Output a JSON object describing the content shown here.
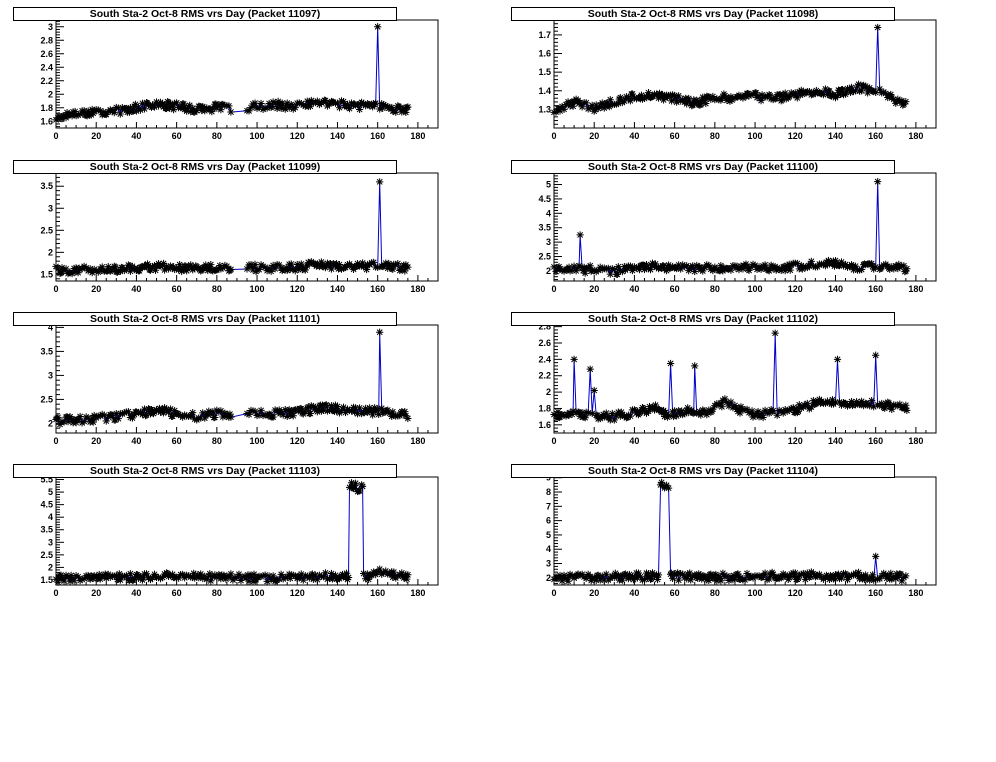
{
  "chart_data": [
    {
      "type": "line",
      "title": "South Sta-2 Oct-8 RMS vrs Day (Packet 11097)",
      "xlabel": "",
      "ylabel": "",
      "xlim": [
        0,
        190
      ],
      "ylim": [
        1.5,
        3.1
      ],
      "xticks": [
        0,
        20,
        40,
        60,
        80,
        100,
        120,
        140,
        160,
        180
      ],
      "yticks": [
        1.6,
        1.8,
        2,
        2.2,
        2.4,
        2.6,
        2.8,
        3
      ],
      "ytick_labels": [
        "1.6",
        "1.8",
        "2",
        "2.2",
        "2.4",
        "2.6",
        "2.8",
        "3"
      ],
      "series": [
        {
          "x": [
            0,
            10,
            20,
            30,
            40,
            50,
            60,
            70,
            80,
            90,
            100,
            110,
            120,
            130,
            140,
            150,
            159,
            160,
            161,
            170,
            175
          ],
          "values": [
            1.65,
            1.72,
            1.74,
            1.75,
            1.8,
            1.86,
            1.82,
            1.78,
            1.8,
            1.78,
            1.82,
            1.84,
            1.82,
            1.9,
            1.86,
            1.82,
            1.84,
            3.0,
            1.82,
            1.78,
            1.76
          ]
        }
      ]
    },
    {
      "type": "line",
      "title": "South Sta-2 Oct-8 RMS vrs Day (Packet 11098)",
      "xlabel": "",
      "ylabel": "",
      "xlim": [
        0,
        190
      ],
      "ylim": [
        1.2,
        1.78
      ],
      "xticks": [
        0,
        20,
        40,
        60,
        80,
        100,
        120,
        140,
        160,
        180
      ],
      "yticks": [
        1.3,
        1.4,
        1.5,
        1.6,
        1.7
      ],
      "ytick_labels": [
        "1.3",
        "1.4",
        "1.5",
        "1.6",
        "1.7"
      ],
      "series": [
        {
          "x": [
            0,
            10,
            20,
            30,
            40,
            50,
            60,
            70,
            80,
            90,
            100,
            110,
            120,
            130,
            140,
            150,
            160,
            161,
            162,
            170,
            175
          ],
          "values": [
            1.3,
            1.34,
            1.3,
            1.34,
            1.37,
            1.37,
            1.36,
            1.33,
            1.37,
            1.36,
            1.37,
            1.36,
            1.38,
            1.4,
            1.38,
            1.42,
            1.4,
            1.74,
            1.4,
            1.35,
            1.33
          ]
        }
      ]
    },
    {
      "type": "line",
      "title": "South Sta-2 Oct-8 RMS vrs Day (Packet 11099)",
      "xlabel": "",
      "ylabel": "",
      "xlim": [
        0,
        190
      ],
      "ylim": [
        1.35,
        3.8
      ],
      "xticks": [
        0,
        20,
        40,
        60,
        80,
        100,
        120,
        140,
        160,
        180
      ],
      "yticks": [
        1.5,
        2,
        2.5,
        3,
        3.5
      ],
      "ytick_labels": [
        "1.5",
        "2",
        "2.5",
        "3",
        "3.5"
      ],
      "series": [
        {
          "x": [
            0,
            10,
            20,
            30,
            40,
            50,
            60,
            70,
            80,
            90,
            100,
            110,
            120,
            130,
            140,
            150,
            160,
            161,
            162,
            170,
            175
          ],
          "values": [
            1.6,
            1.6,
            1.6,
            1.62,
            1.65,
            1.68,
            1.66,
            1.62,
            1.65,
            1.66,
            1.65,
            1.64,
            1.66,
            1.72,
            1.7,
            1.68,
            1.7,
            3.6,
            1.68,
            1.66,
            1.64
          ]
        }
      ]
    },
    {
      "type": "line",
      "title": "South Sta-2 Oct-8 RMS vrs Day (Packet 11100)",
      "xlabel": "",
      "ylabel": "",
      "xlim": [
        0,
        190
      ],
      "ylim": [
        1.65,
        5.4
      ],
      "xticks": [
        0,
        20,
        40,
        60,
        80,
        100,
        120,
        140,
        160,
        180
      ],
      "yticks": [
        2,
        2.5,
        3,
        3.5,
        4,
        4.5,
        5
      ],
      "ytick_labels": [
        "2",
        "2.5",
        "3",
        "3.5",
        "4",
        "4.5",
        "5"
      ],
      "series": [
        {
          "x": [
            0,
            10,
            12,
            13,
            14,
            20,
            30,
            40,
            50,
            60,
            70,
            80,
            90,
            100,
            110,
            120,
            130,
            140,
            150,
            160,
            161,
            162,
            170,
            175
          ],
          "values": [
            2.05,
            2.05,
            2.05,
            3.25,
            2.05,
            2.05,
            2.0,
            2.1,
            2.15,
            2.12,
            2.08,
            2.1,
            2.12,
            2.1,
            2.1,
            2.15,
            2.25,
            2.25,
            2.15,
            2.15,
            5.1,
            2.15,
            2.12,
            2.1
          ]
        }
      ]
    },
    {
      "type": "line",
      "title": "South Sta-2 Oct-8 RMS vrs Day (Packet 11101)",
      "xlabel": "",
      "ylabel": "",
      "xlim": [
        0,
        190
      ],
      "ylim": [
        1.8,
        4.05
      ],
      "xticks": [
        0,
        20,
        40,
        60,
        80,
        100,
        120,
        140,
        160,
        180
      ],
      "yticks": [
        2,
        2.5,
        3,
        3.5,
        4
      ],
      "ytick_labels": [
        "2",
        "2.5",
        "3",
        "3.5",
        "4"
      ],
      "series": [
        {
          "x": [
            0,
            10,
            20,
            30,
            40,
            50,
            60,
            70,
            80,
            90,
            100,
            110,
            120,
            130,
            140,
            150,
            160,
            161,
            162,
            170,
            175
          ],
          "values": [
            2.05,
            2.08,
            2.1,
            2.15,
            2.2,
            2.28,
            2.2,
            2.15,
            2.2,
            2.2,
            2.2,
            2.2,
            2.22,
            2.32,
            2.3,
            2.25,
            2.25,
            3.9,
            2.25,
            2.2,
            2.15
          ]
        }
      ]
    },
    {
      "type": "line",
      "title": "South Sta-2 Oct-8 RMS vrs Day (Packet 11102)",
      "xlabel": "",
      "ylabel": "",
      "xlim": [
        0,
        190
      ],
      "ylim": [
        1.5,
        2.82
      ],
      "xticks": [
        0,
        20,
        40,
        60,
        80,
        100,
        120,
        140,
        160,
        180
      ],
      "yticks": [
        1.6,
        1.8,
        2,
        2.2,
        2.4,
        2.6,
        2.8
      ],
      "ytick_labels": [
        "1.6",
        "1.8",
        "2",
        "2.2",
        "2.4",
        "2.6",
        "2.8"
      ],
      "series": [
        {
          "x": [
            0,
            5,
            9,
            10,
            11,
            15,
            17,
            18,
            19,
            20,
            21,
            30,
            40,
            50,
            55,
            57,
            58,
            59,
            65,
            69,
            70,
            71,
            75,
            80,
            85,
            90,
            100,
            108,
            109,
            110,
            115,
            125,
            135,
            140,
            141,
            142,
            150,
            159,
            160,
            161,
            170,
            175
          ],
          "values": [
            1.72,
            1.72,
            1.75,
            2.4,
            1.72,
            1.72,
            1.72,
            2.28,
            1.72,
            2.02,
            1.72,
            1.7,
            1.75,
            1.8,
            1.72,
            1.72,
            2.35,
            1.72,
            1.78,
            1.78,
            2.32,
            1.78,
            1.75,
            1.8,
            1.9,
            1.8,
            1.72,
            1.75,
            1.75,
            2.72,
            1.75,
            1.82,
            1.9,
            1.85,
            2.4,
            1.85,
            1.88,
            1.85,
            2.45,
            1.85,
            1.82,
            1.8
          ]
        }
      ]
    },
    {
      "type": "line",
      "title": "South Sta-2 Oct-8 RMS vrs Day (Packet 11103)",
      "xlabel": "",
      "ylabel": "",
      "xlim": [
        0,
        190
      ],
      "ylim": [
        1.3,
        5.6
      ],
      "xticks": [
        0,
        20,
        40,
        60,
        80,
        100,
        120,
        140,
        160,
        180
      ],
      "yticks": [
        1.5,
        2,
        2.5,
        3,
        3.5,
        4,
        4.5,
        5,
        5.5
      ],
      "ytick_labels": [
        "1.5",
        "2",
        "2.5",
        "3",
        "3.5",
        "4",
        "4.5",
        "5",
        "5.5"
      ],
      "series": [
        {
          "x": [
            0,
            20,
            40,
            60,
            80,
            100,
            120,
            140,
            145,
            146,
            147,
            148,
            149,
            150,
            151,
            152,
            153,
            155,
            160,
            170,
            175
          ],
          "values": [
            1.55,
            1.58,
            1.62,
            1.65,
            1.6,
            1.58,
            1.6,
            1.68,
            1.65,
            5.2,
            5.25,
            5.2,
            5.22,
            5.15,
            5.1,
            5.15,
            1.65,
            1.65,
            1.9,
            1.65,
            1.6
          ]
        }
      ]
    },
    {
      "type": "line",
      "title": "South Sta-2 Oct-8 RMS vrs Day (Packet 11104)",
      "xlabel": "",
      "ylabel": "",
      "xlim": [
        0,
        190
      ],
      "ylim": [
        1.5,
        9.05
      ],
      "xticks": [
        0,
        20,
        40,
        60,
        80,
        100,
        120,
        140,
        160,
        180
      ],
      "yticks": [
        2,
        3,
        4,
        5,
        6,
        7,
        8,
        9
      ],
      "ytick_labels": [
        "2",
        "3",
        "4",
        "5",
        "6",
        "7",
        "8",
        "9"
      ],
      "series": [
        {
          "x": [
            0,
            20,
            40,
            50,
            52,
            53,
            54,
            55,
            56,
            57,
            58,
            60,
            80,
            100,
            120,
            140,
            159,
            160,
            161,
            170,
            175
          ],
          "values": [
            2.0,
            2.05,
            2.1,
            2.1,
            2.1,
            8.5,
            8.55,
            8.45,
            8.3,
            8.2,
            2.1,
            2.1,
            2.05,
            2.1,
            2.15,
            2.15,
            2.1,
            3.5,
            2.1,
            2.05,
            2.0
          ]
        }
      ]
    }
  ],
  "style": {
    "line_color": "#0000cc",
    "marker_color": "#000000",
    "marker": "asterisk"
  }
}
